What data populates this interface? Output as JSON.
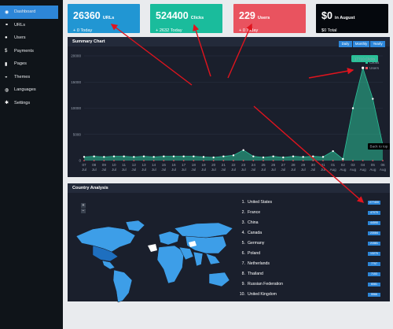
{
  "sidebar": {
    "items": [
      {
        "label": "Dashboard",
        "icon": "dashboard-icon",
        "glyph": "◉"
      },
      {
        "label": "URLs",
        "icon": "link-icon",
        "glyph": "⚭"
      },
      {
        "label": "Users",
        "icon": "user-icon",
        "glyph": "●"
      },
      {
        "label": "Payments",
        "icon": "dollar-icon",
        "glyph": "$"
      },
      {
        "label": "Pages",
        "icon": "page-icon",
        "glyph": "▮"
      },
      {
        "label": "Themes",
        "icon": "theme-icon",
        "glyph": "◒"
      },
      {
        "label": "Languages",
        "icon": "globe-icon",
        "glyph": "◍"
      },
      {
        "label": "Settings",
        "icon": "gear-icon",
        "glyph": "✱"
      }
    ]
  },
  "cards": [
    {
      "value": "26360",
      "label": "URLs",
      "sub": "+ 0 Today",
      "color": "#2196d3"
    },
    {
      "value": "524400",
      "label": "Clicks",
      "sub": "+ 2632 Today",
      "color": "#1abc9c"
    },
    {
      "value": "229",
      "label": "Users",
      "sub": "+ 0 Today",
      "color": "#e9535f"
    },
    {
      "value": "$0",
      "label": "in August",
      "sub": "$0 Total",
      "color": "#05080d"
    }
  ],
  "summary": {
    "title": "Summary Chart",
    "tabs": [
      "Daily",
      "Monthly",
      "Yearly"
    ],
    "back_to_top": "Back to top"
  },
  "chart_data": {
    "type": "area",
    "x": [
      "07 Jul",
      "08 Jul",
      "09 Jul",
      "10 Jul",
      "11 Jul",
      "12 Jul",
      "13 Jul",
      "14 Jul",
      "15 Jul",
      "16 Jul",
      "17 Jul",
      "18 Jul",
      "19 Jul",
      "20 Jul",
      "21 Jul",
      "22 Jul",
      "23 Jul",
      "24 Jul",
      "25 Jul",
      "26 Jul",
      "27 Jul",
      "28 Jul",
      "29 Jul",
      "30 Jul",
      "31 Jul",
      "01 Aug",
      "02 Aug",
      "03 Aug",
      "04 Aug",
      "05 Aug",
      "06 Aug"
    ],
    "series": [
      {
        "name": "Clicks",
        "color": "#2bbf98",
        "values": [
          700,
          800,
          700,
          800,
          800,
          700,
          800,
          700,
          800,
          800,
          800,
          800,
          700,
          600,
          800,
          1000,
          2000,
          800,
          600,
          800,
          600,
          800,
          700,
          800,
          700,
          1800,
          300,
          10000,
          17710,
          11800,
          3000
        ]
      },
      {
        "name": "Users",
        "color": "#e9535f",
        "values": [
          0,
          0,
          0,
          0,
          0,
          0,
          0,
          0,
          0,
          0,
          0,
          0,
          0,
          0,
          0,
          0,
          0,
          0,
          0,
          0,
          0,
          0,
          0,
          0,
          0,
          0,
          0,
          0,
          0,
          0,
          0
        ]
      }
    ],
    "ylim": [
      0,
      20000
    ],
    "yticks": [
      0,
      5000,
      10000,
      15000,
      20000
    ],
    "tooltip": "17710 Clicks",
    "legend_position": "top-right",
    "grid": true
  },
  "country": {
    "title": "Country Analysis",
    "zoom_in": "+",
    "zoom_out": "−",
    "items": [
      {
        "rank": "1.",
        "name": "United States",
        "value": "277400"
      },
      {
        "rank": "2.",
        "name": "France",
        "value": "47070"
      },
      {
        "rank": "3.",
        "name": "China",
        "value": "44590"
      },
      {
        "rank": "4.",
        "name": "Canada",
        "value": "23084"
      },
      {
        "rank": "5.",
        "name": "Germany",
        "value": "21581"
      },
      {
        "rank": "6.",
        "name": "Poland",
        "value": "13270"
      },
      {
        "rank": "7.",
        "name": "Netherlands",
        "value": "7757"
      },
      {
        "rank": "8.",
        "name": "Thailand",
        "value": "7153"
      },
      {
        "rank": "9.",
        "name": "Russian Federation",
        "value": "6081"
      },
      {
        "rank": "10.",
        "name": "United Kingdom",
        "value": "5966"
      }
    ]
  }
}
